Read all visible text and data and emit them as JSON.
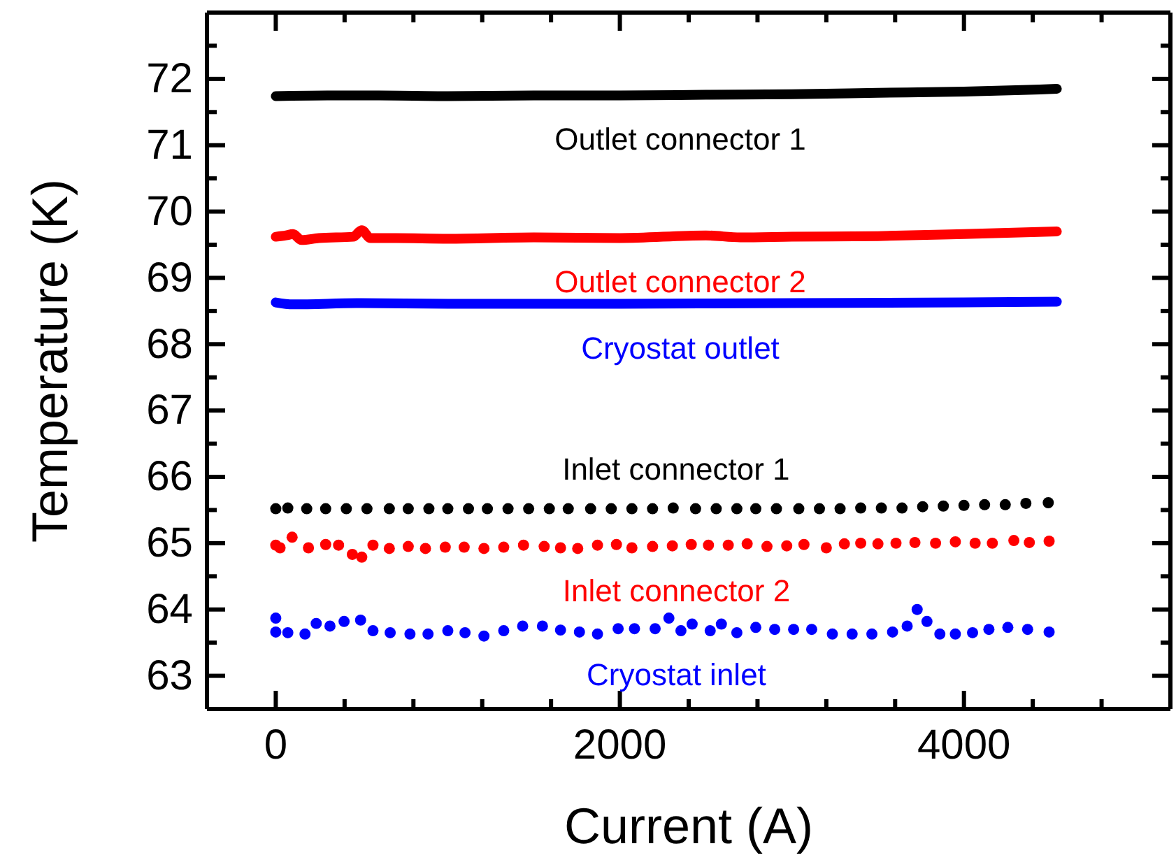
{
  "chart_data": {
    "type": "line",
    "xlabel": "Current (A)",
    "ylabel": "Temperature (K)",
    "xlim": [
      -400,
      5200
    ],
    "ylim": [
      62.5,
      73
    ],
    "xticks": [
      0,
      {
        "value": 400,
        "label": null
      },
      {
        "value": 800,
        "label": null
      },
      {
        "value": 1200,
        "label": null
      },
      {
        "value": 1600,
        "label": null
      },
      2000,
      {
        "value": 2400,
        "label": null
      },
      {
        "value": 2800,
        "label": null
      },
      {
        "value": 3200,
        "label": null
      },
      {
        "value": 3600,
        "label": null
      },
      4000,
      {
        "value": 4400,
        "label": null
      },
      {
        "value": 4800,
        "label": null
      }
    ],
    "yticks": [
      {
        "value": 62.5,
        "label": null
      },
      63,
      {
        "value": 63.5,
        "label": null
      },
      64,
      {
        "value": 64.5,
        "label": null
      },
      65,
      {
        "value": 65.5,
        "label": null
      },
      66,
      {
        "value": 66.5,
        "label": null
      },
      67,
      {
        "value": 67.5,
        "label": null
      },
      68,
      {
        "value": 68.5,
        "label": null
      },
      69,
      {
        "value": 69.5,
        "label": null
      },
      70,
      {
        "value": 70.5,
        "label": null
      },
      71,
      {
        "value": 71.5,
        "label": null
      },
      72,
      {
        "value": 72.5,
        "label": null
      }
    ],
    "grid": false,
    "series": [
      {
        "name": "Outlet connector 1",
        "marker": "none",
        "color": "#000000",
        "x": [
          0,
          300,
          600,
          1000,
          1500,
          2000,
          2500,
          3000,
          3500,
          4000,
          4300,
          4540
        ],
        "values": [
          71.74,
          71.75,
          71.75,
          71.74,
          71.75,
          71.75,
          71.76,
          71.77,
          71.79,
          71.81,
          71.83,
          71.85
        ]
      },
      {
        "name": "Outlet connector 2",
        "marker": "none",
        "color": "#ff0000",
        "x": [
          0,
          60,
          100,
          150,
          250,
          450,
          500,
          550,
          700,
          1000,
          1500,
          2000,
          2500,
          2700,
          3000,
          3500,
          4000,
          4540
        ],
        "values": [
          69.62,
          69.64,
          69.66,
          69.57,
          69.6,
          69.62,
          69.72,
          69.6,
          69.6,
          69.59,
          69.61,
          69.6,
          69.64,
          69.61,
          69.62,
          69.63,
          69.66,
          69.7
        ]
      },
      {
        "name": "Cryostat outlet",
        "marker": "none",
        "color": "#0000ff",
        "x": [
          0,
          100,
          500,
          1000,
          2000,
          3000,
          4000,
          4540
        ],
        "values": [
          68.63,
          68.6,
          68.62,
          68.61,
          68.61,
          68.62,
          68.63,
          68.64
        ]
      },
      {
        "name": "Inlet connector 1",
        "type": "scatter",
        "marker": "circle",
        "color": "#000000",
        "x": [
          0,
          70,
          180,
          290,
          410,
          530,
          660,
          770,
          890,
          1000,
          1120,
          1230,
          1350,
          1470,
          1590,
          1700,
          1830,
          1950,
          2070,
          2190,
          2310,
          2440,
          2560,
          2680,
          2790,
          2910,
          3040,
          3160,
          3280,
          3400,
          3520,
          3640,
          3760,
          3880,
          4000,
          4120,
          4240,
          4360,
          4490
        ],
        "values": [
          65.52,
          65.53,
          65.52,
          65.52,
          65.52,
          65.52,
          65.52,
          65.52,
          65.52,
          65.52,
          65.52,
          65.52,
          65.52,
          65.52,
          65.52,
          65.52,
          65.52,
          65.52,
          65.52,
          65.52,
          65.53,
          65.52,
          65.52,
          65.52,
          65.52,
          65.52,
          65.52,
          65.52,
          65.52,
          65.53,
          65.53,
          65.53,
          65.55,
          65.56,
          65.57,
          65.58,
          65.58,
          65.6,
          65.61
        ]
      },
      {
        "name": "Inlet connector 2",
        "type": "scatter",
        "marker": "circle",
        "color": "#ff0000",
        "x": [
          0,
          25,
          95,
          190,
          290,
          365,
          445,
          500,
          565,
          660,
          770,
          870,
          985,
          1095,
          1210,
          1325,
          1440,
          1560,
          1655,
          1755,
          1870,
          1980,
          2070,
          2190,
          2305,
          2415,
          2515,
          2630,
          2740,
          2855,
          2970,
          3070,
          3200,
          3305,
          3400,
          3500,
          3605,
          3715,
          3835,
          3950,
          4065,
          4165,
          4290,
          4380,
          4495
        ],
        "values": [
          64.97,
          64.93,
          65.09,
          64.93,
          64.98,
          64.97,
          64.83,
          64.79,
          64.97,
          64.92,
          64.95,
          64.92,
          64.94,
          64.94,
          64.92,
          64.94,
          64.97,
          64.95,
          64.93,
          64.92,
          64.97,
          64.98,
          64.93,
          64.95,
          64.96,
          64.98,
          64.97,
          64.97,
          64.99,
          64.95,
          64.96,
          64.98,
          64.93,
          64.99,
          65.0,
          64.99,
          65.0,
          65.01,
          65.0,
          65.02,
          65.0,
          65.0,
          65.04,
          65.01,
          65.03
        ]
      },
      {
        "name": "Cryostat inlet",
        "type": "scatter",
        "marker": "circle",
        "color": "#0000ff",
        "x": [
          0,
          0,
          70,
          170,
          235,
          315,
          397,
          493,
          565,
          665,
          780,
          885,
          1000,
          1100,
          1210,
          1325,
          1435,
          1550,
          1655,
          1765,
          1870,
          1990,
          2085,
          2205,
          2285,
          2355,
          2420,
          2525,
          2590,
          2680,
          2790,
          2900,
          3010,
          3115,
          3235,
          3350,
          3465,
          3585,
          3670,
          3728,
          3785,
          3860,
          3950,
          4050,
          4145,
          4255,
          4370,
          4495
        ],
        "values": [
          63.87,
          63.66,
          63.65,
          63.63,
          63.79,
          63.75,
          63.82,
          63.84,
          63.68,
          63.65,
          63.63,
          63.63,
          63.68,
          63.65,
          63.6,
          63.68,
          63.75,
          63.75,
          63.69,
          63.66,
          63.63,
          63.71,
          63.71,
          63.71,
          63.87,
          63.68,
          63.78,
          63.68,
          63.78,
          63.65,
          63.73,
          63.7,
          63.7,
          63.7,
          63.63,
          63.63,
          63.63,
          63.66,
          63.75,
          64.0,
          63.82,
          63.63,
          63.63,
          63.65,
          63.7,
          63.73,
          63.7,
          63.66
        ]
      }
    ]
  }
}
